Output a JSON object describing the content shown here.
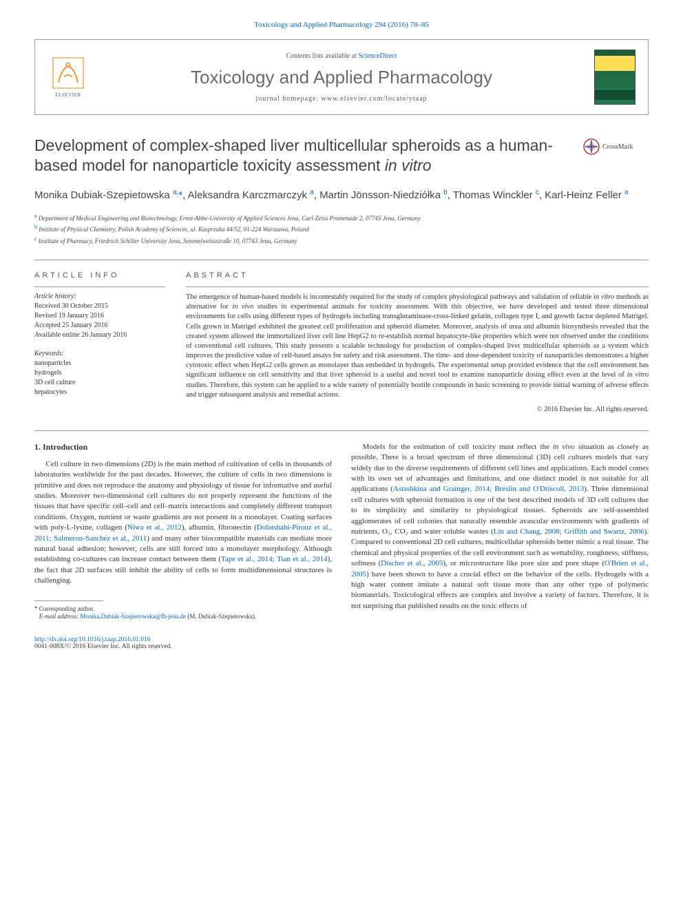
{
  "top_link": "Toxicology and Applied Pharmacology 294 (2016) 78–85",
  "header": {
    "publisher": "ELSEVIER",
    "contents_prefix": "Contents lists available at ",
    "contents_link": "ScienceDirect",
    "journal_name": "Toxicology and Applied Pharmacology",
    "homepage_prefix": "journal homepage: ",
    "homepage_url": "www.elsevier.com/locate/ytaap"
  },
  "crossmark_label": "CrossMark",
  "title_parts": {
    "main": "Development of complex-shaped liver multicellular spheroids as a human-based model for nanoparticle toxicity assessment ",
    "italic": "in vitro"
  },
  "authors_html": "Monika Dubiak-Szepietowska <sup>a,</sup><span class=\"star\">*</span>, Aleksandra Karczmarczyk <sup>a</sup>, Martin Jönsson-Niedziółka <sup>b</sup>, Thomas Winckler <sup>c</sup>, Karl-Heinz Feller <sup>a</sup>",
  "affiliations": [
    {
      "sup": "a",
      "text": "Department of Medical Engineering and Biotechnology, Ernst-Abbe-University of Applied Sciences Jena, Carl-Zeiss Promenade 2, 07745 Jena, Germany"
    },
    {
      "sup": "b",
      "text": "Institute of Physical Chemistry, Polish Academy of Sciences, ul. Kasprzaka 44/52, 01-224 Warszawa, Poland"
    },
    {
      "sup": "c",
      "text": "Institute of Pharmacy, Friedrich Schiller University Jena, Semmelweissstraße 10, 07743 Jena, Germany"
    }
  ],
  "article_info": {
    "heading": "article info",
    "history_label": "Article history:",
    "history": [
      "Received 30 October 2015",
      "Revised 19 January 2016",
      "Accepted 25 January 2016",
      "Available online 26 January 2016"
    ],
    "keywords_label": "Keywords:",
    "keywords": [
      "nanoparticles",
      "hydrogels",
      "3D cell culture",
      "hepatocytes"
    ]
  },
  "abstract": {
    "heading": "abstract",
    "text": "The emergence of human-based models is incontestably required for the study of complex physiological pathways and validation of reliable <em>in vitro</em> methods as alternative for <em>in vivo</em> studies in experimental animals for toxicity assessment. With this objective, we have developed and tested three dimensional environments for cells using different types of hydrogels including transglutaminase-cross-linked gelatin, collagen type I, and growth factor depleted Matrigel. Cells grown in Matrigel exhibited the greatest cell proliferation and spheroid diameter. Moreover, analysis of urea and albumin biosynthesis revealed that the created system allowed the immortalized liver cell line HepG2 to re-establish normal hepatocyte-like properties which were not observed under the conditions of conventional cell cultures. This study presents a scalable technology for production of complex-shaped liver multicellular spheroids as a system which improves the predictive value of cell-based assays for safety and risk assessment. The time- and dose-dependent toxicity of nanoparticles demonstrates a higher cytotoxic effect when HepG2 cells grown as monolayer than embedded in hydrogels. The experimental setup provided evidence that the cell environment has significant influence on cell sensitivity and that liver spheroid is a useful and novel tool to examine nanoparticle dosing effect even at the level of <em>in vitro</em> studies. Therefore, this system can be applied to a wide variety of potentially hostile compounds in basic screening to provide initial warning of adverse effects and trigger subsequent analysis and remedial actions.",
    "copyright": "© 2016 Elsevier Inc. All rights reserved."
  },
  "section1": {
    "heading": "1. Introduction",
    "para_left": "Cell culture in two dimensions (2D) is the main method of cultivation of cells in thousands of laboratories worldwide for the past decades. However, the culture of cells in two dimensions is primitive and does not reproduce the anatomy and physiology of tissue for informative and useful studies. Moreover two-dimensional cell cultures do not properly represent the functions of the tissues that have specific cell–cell and cell–matrix interactions and completely different transport conditions. Oxygen, nutrient or waste gradients are not present in a monolayer. Coating surfaces with poly-L-lysine, collagen (<a>Niwa et al., 2012</a>), albumin, fibronectin (<a>Dolatshahi-Pirouz et al., 2011; Salmeron-Sanchez et al., 2011</a>) and many other biocompatible materials can mediate more natural basal adhesion; however, cells are still forced into a monolayer morphology. Although establishing co-cultures can increase contact between them (<a>Tape et al., 2014; Tian et al., 2014</a>), the fact that 2D surfaces still inhibit the ability of cells to form multidimensional structures is challenging.",
    "para_right": "Models for the estimation of cell toxicity must reflect the <em>in vivo</em> situation as closely as possible. There is a broad spectrum of three dimensional (3D) cell cultures models that vary widely due to the diverse requirements of different cell lines and applications. Each model comes with its own set of advantages and limitations, and one distinct model is not suitable for all applications (<a>Astashkina and Grainger, 2014; Breslin and O'Driscoll, 2013</a>). Three dimensional cell cultures with spheroid formation is one of the best described models of 3D cell cultures due to its simplicity and similarity to physiological tissues. Spheroids are self-assembled agglomerates of cell colonies that naturally resemble avascular environments with gradients of nutrients, O₂, CO₂ and water soluble wastes (<a>Lin and Chang, 2008; Griffith and Swartz, 2006</a>). Compared to conventional 2D cell cultures, multicellular spheroids better mimic a real tissue. The chemical and physical properties of the cell environment such as wettability, roughness, stiffness, softness (<a>Discher et al., 2005</a>), or microstructure like pore size and pore shape (<a>O'Brien et al., 2005</a>) have been shown to have a crucial effect on the behavior of the cells. Hydrogels with a high water content imitate a natural soft tissue more than any other type of polymeric biomaterials. Toxicological effects are complex and involve a variety of factors. Therefore, it is not surprising that published results on the toxic effects of"
  },
  "footnote": {
    "corr": "Corresponding author.",
    "email_label": "E-mail address:",
    "email": "Monika.Dubiak-Szepietowska@fh-jena.de",
    "email_name": "(M. Dubiak-Szepietowska)."
  },
  "footer": {
    "doi": "http://dx.doi.org/10.1016/j.taap.2016.01.016",
    "issn": "0041-008X/© 2016 Elsevier Inc. All rights reserved."
  },
  "colors": {
    "link": "#0066cc",
    "text": "#333333",
    "heading_gray": "#6a6a6a",
    "elsevier_orange": "#ff7a00",
    "cover_green": "#1a5a3a",
    "cover_yellow": "#ffdd55"
  }
}
